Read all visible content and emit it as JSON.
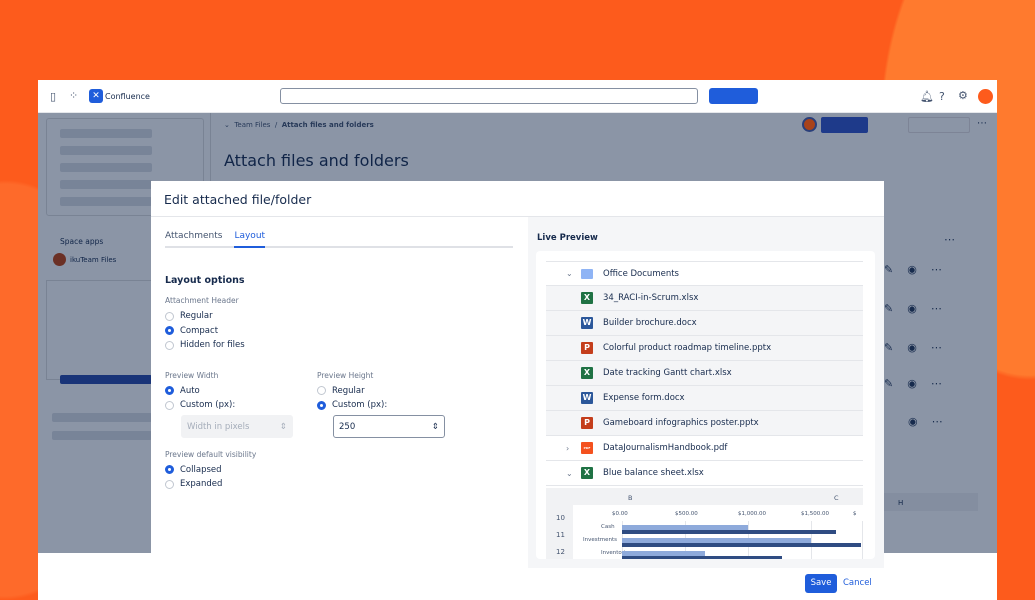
{
  "app": {
    "name": "Confluence"
  },
  "breadcrumb": {
    "parent": "Team Files",
    "separator": "/",
    "current": "Attach files and folders"
  },
  "page_title": "Attach files and folders",
  "sidebar": {
    "section": "Space apps",
    "app_item": "ikuTeam Files"
  },
  "modal": {
    "title": "Edit attached file/folder",
    "tabs": [
      {
        "label": "Attachments",
        "active": false
      },
      {
        "label": "Layout",
        "active": true
      }
    ],
    "section_title": "Layout options",
    "attachment_header": {
      "label": "Attachment Header",
      "options": [
        "Regular",
        "Compact",
        "Hidden for files"
      ],
      "selected": "Compact"
    },
    "preview_width": {
      "label": "Preview Width",
      "options": [
        "Auto",
        "Custom (px):"
      ],
      "selected": "Auto",
      "placeholder": "Width in pixels"
    },
    "preview_height": {
      "label": "Preview Height",
      "options": [
        "Regular",
        "Custom (px):"
      ],
      "selected": "Custom (px):",
      "value": "250"
    },
    "visibility": {
      "label": "Preview default visibility",
      "options": [
        "Collapsed",
        "Expanded"
      ],
      "selected": "Collapsed"
    },
    "live_preview": {
      "title": "Live Preview",
      "folder": "Office Documents",
      "files": [
        {
          "name": "34_RACI-in-Scrum.xlsx",
          "type": "X",
          "color": "#1f7244"
        },
        {
          "name": "Builder brochure.docx",
          "type": "W",
          "color": "#2b579a"
        },
        {
          "name": "Colorful product roadmap timeline.pptx",
          "type": "P",
          "color": "#c43e1c"
        },
        {
          "name": "Date tracking Gantt chart.xlsx",
          "type": "X",
          "color": "#1f7244"
        },
        {
          "name": "Expense form.docx",
          "type": "W",
          "color": "#2b579a"
        },
        {
          "name": "Gameboard infographics poster.pptx",
          "type": "P",
          "color": "#c43e1c"
        }
      ],
      "pdf": {
        "name": "DataJournalismHandbook.pdf",
        "type": "PDF",
        "color": "#f4511e"
      },
      "sheet": {
        "name": "Blue balance sheet.xlsx",
        "type": "X",
        "color": "#1f7244",
        "columns": [
          "B",
          "C"
        ],
        "rows": [
          "10",
          "11",
          "12"
        ],
        "x_ticks": [
          "$0.00",
          "$500.00",
          "$1,000.00",
          "$1,500.00",
          "$"
        ],
        "categories": [
          "Cash",
          "Investments",
          "Inventories"
        ],
        "light": [
          1000,
          1500,
          660
        ],
        "dark": [
          1700,
          1900,
          1270
        ],
        "colors": {
          "light": "#8eaadb",
          "dark": "#2f4c82"
        }
      }
    },
    "save": "Save",
    "cancel": "Cancel"
  },
  "background_table": {
    "column": "H"
  },
  "colors": {
    "accent": "#1f5ddb",
    "background": "#fd5b1c"
  }
}
